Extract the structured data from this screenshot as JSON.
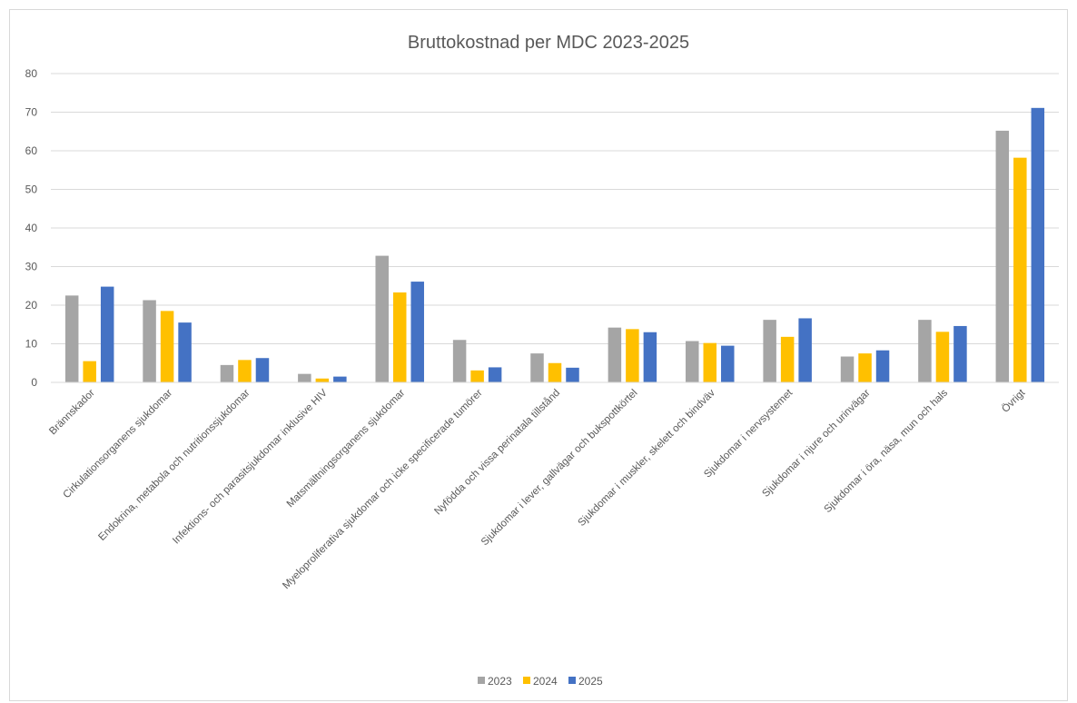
{
  "chart_data": {
    "type": "bar",
    "title": "Bruttokostnad per MDC 2023-2025",
    "xlabel": "",
    "ylabel": "",
    "ylim": [
      0,
      80
    ],
    "yticks": [
      0,
      10,
      20,
      30,
      40,
      50,
      60,
      70,
      80
    ],
    "grid": true,
    "legend_position": "bottom",
    "categories": [
      "Brännskador",
      "Cirkulationsorganens sjukdomar",
      "Endokrina, metabola och nutritionssjukdomar",
      "Infektions- och parasitsjukdomar inklusive HIV",
      "Matsmältningsorganens sjukdomar",
      "Myeloproliferativa sjukdomar och icke specificerade tumörer",
      "Nyfödda och vissa perinatala tillstånd",
      "Sjukdomar i lever, gallvägar och bukspottkörtel",
      "Sjukdomar i muskler, skelett och bindväv",
      "Sjukdomar i nervsystemet",
      "Sjukdomar i njure och urinvägar",
      "Sjukdomar i öra, näsa, mun och hals",
      "Övrigt"
    ],
    "series": [
      {
        "name": "2023",
        "color": "#a5a5a5",
        "values": [
          22.5,
          21.3,
          4.5,
          2.2,
          32.8,
          11.0,
          7.5,
          14.2,
          10.7,
          16.2,
          6.7,
          16.2,
          65.2
        ]
      },
      {
        "name": "2024",
        "color": "#ffc000",
        "values": [
          5.5,
          18.5,
          5.8,
          1.0,
          23.3,
          3.1,
          5.0,
          13.8,
          10.2,
          11.8,
          7.5,
          13.1,
          58.2
        ]
      },
      {
        "name": "2025",
        "color": "#4472c4",
        "values": [
          24.8,
          15.5,
          6.3,
          1.5,
          26.1,
          3.9,
          3.8,
          13.0,
          9.5,
          16.6,
          8.3,
          14.6,
          71.1
        ]
      }
    ]
  }
}
